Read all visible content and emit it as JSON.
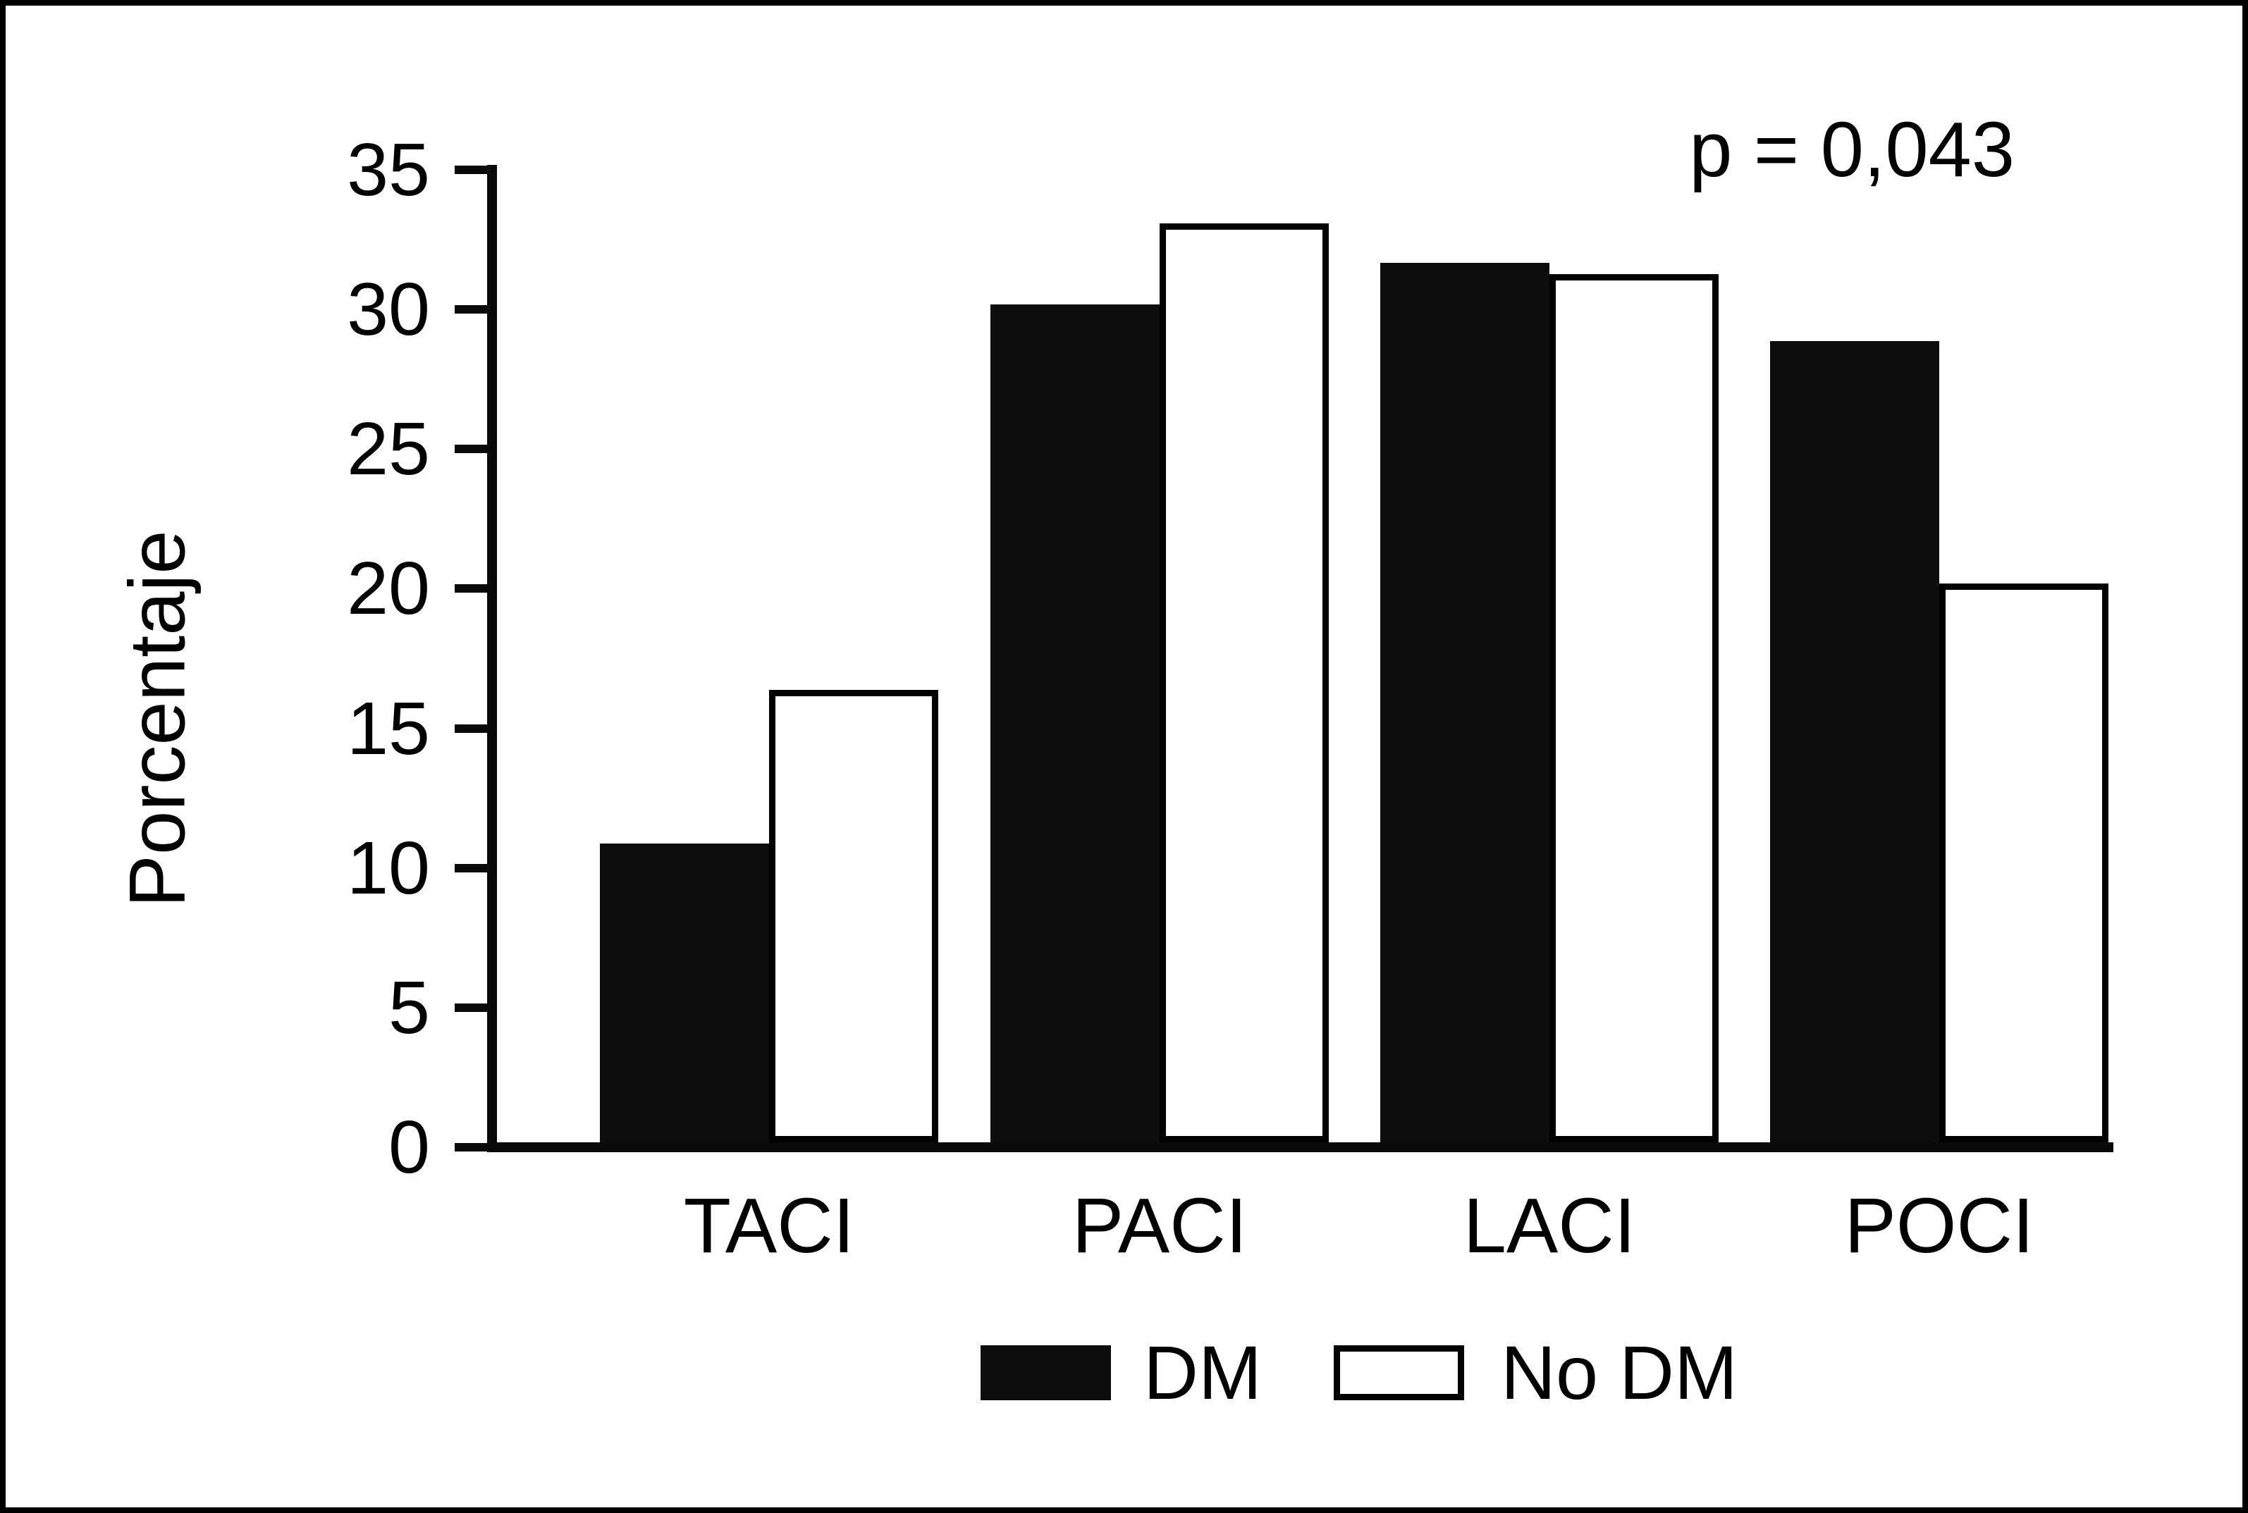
{
  "figure": {
    "frame_color": "#000000",
    "background_color": "#ffffff",
    "annotation": "p = 0,043"
  },
  "legend": {
    "dm_label": "DM",
    "nodm_label": "No DM",
    "dm_color": "#0d0d0d",
    "nodm_color": "#ffffff"
  },
  "chart_data": {
    "type": "bar",
    "title": "",
    "categories": [
      "TACI",
      "PACI",
      "LACI",
      "POCI"
    ],
    "series": [
      {
        "name": "DM",
        "color": "#0d0d0d",
        "values": [
          10.7,
          30.0,
          31.5,
          28.7
        ]
      },
      {
        "name": "No DM",
        "color": "#ffffff",
        "values": [
          16.2,
          32.9,
          31.1,
          20.0
        ]
      }
    ],
    "xlabel": "",
    "ylabel": "Porcentaje",
    "ylim": [
      0,
      35
    ],
    "yticks": [
      0,
      5,
      10,
      15,
      20,
      25,
      30,
      35
    ],
    "annotation": "p = 0,043",
    "legend_position": "bottom",
    "grid": false
  }
}
